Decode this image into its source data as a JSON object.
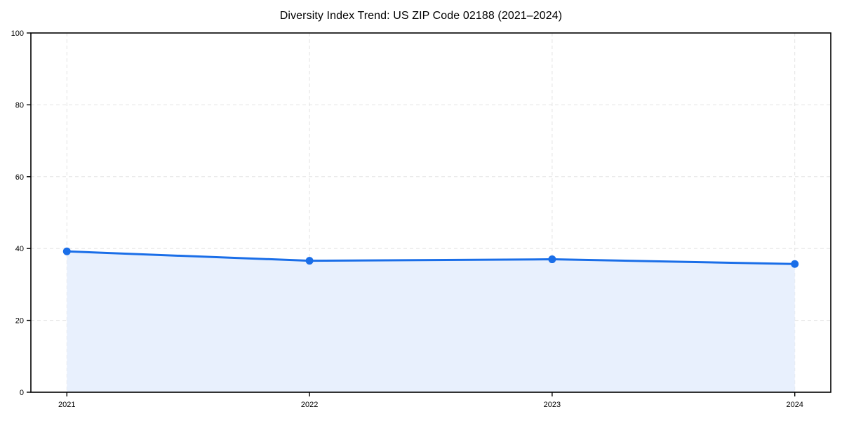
{
  "chart_data": {
    "type": "area",
    "title": "Diversity Index Trend: US ZIP Code 02188 (2021–2024)",
    "xlabel": "",
    "ylabel": "",
    "categories": [
      "2021",
      "2022",
      "2023",
      "2024"
    ],
    "series": [
      {
        "name": "Diversity Index",
        "values": [
          39.2,
          36.6,
          37.0,
          35.7
        ]
      }
    ],
    "ylim": [
      0,
      100
    ],
    "yticks": [
      0,
      20,
      40,
      60,
      80,
      100
    ],
    "grid": true,
    "grid_style": "dashed",
    "legend": false,
    "marker": "circle",
    "colors": {
      "line": "#1a6ee8",
      "fill": "#e8f0fd",
      "grid": "#e3e3e3",
      "axis": "#000000",
      "tick_label": "#000000",
      "background": "#ffffff"
    }
  }
}
